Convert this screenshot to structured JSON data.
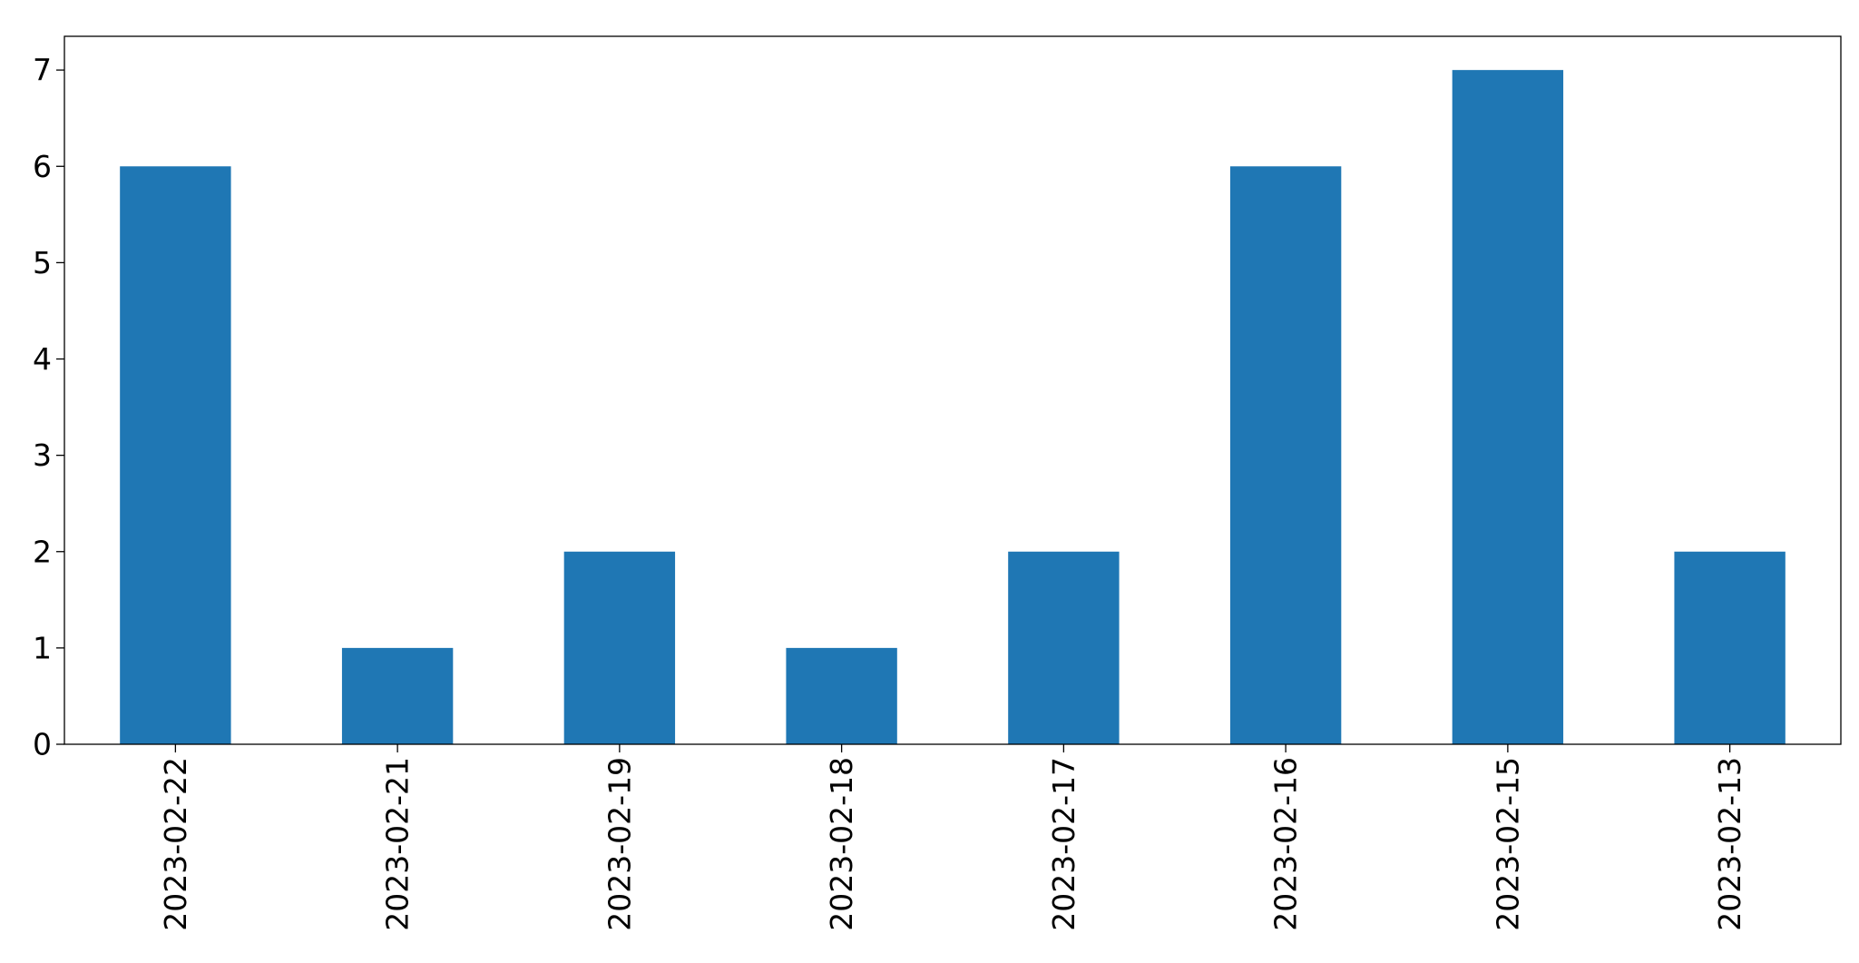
{
  "chart_data": {
    "type": "bar",
    "title": "",
    "xlabel": "",
    "ylabel": "",
    "categories": [
      "2023-02-22",
      "2023-02-21",
      "2023-02-19",
      "2023-02-18",
      "2023-02-17",
      "2023-02-16",
      "2023-02-15",
      "2023-02-13"
    ],
    "values": [
      6,
      1,
      2,
      1,
      2,
      6,
      7,
      2
    ],
    "ylim": [
      0,
      7.35
    ],
    "yticks": [
      "0",
      "1",
      "2",
      "3",
      "4",
      "5",
      "6",
      "7"
    ],
    "grid": false,
    "legend": "none",
    "bar_color": "#1f77b4"
  }
}
